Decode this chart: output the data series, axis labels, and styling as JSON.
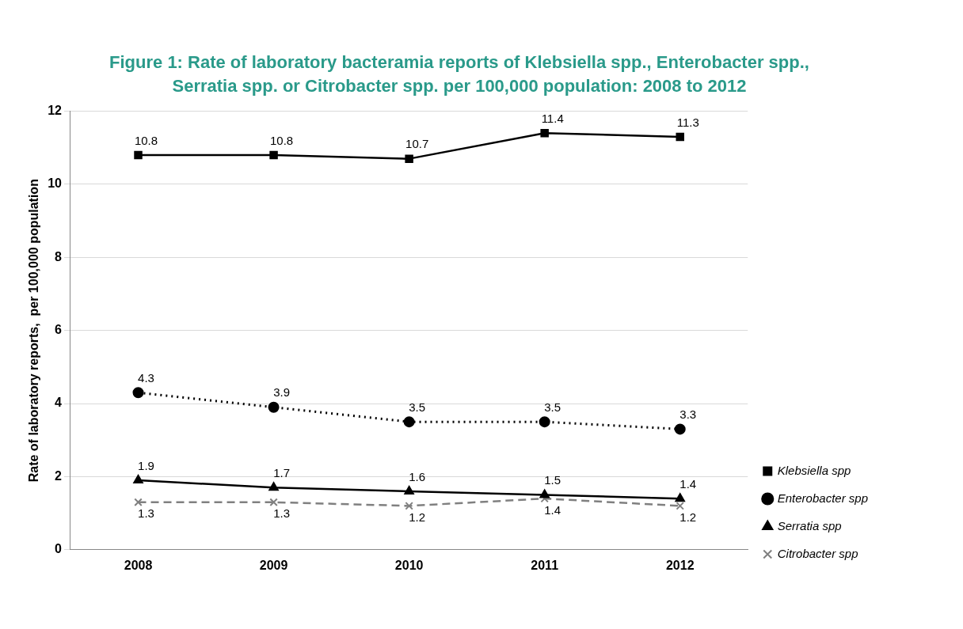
{
  "chart_data": {
    "type": "line",
    "title": "Figure 1: Rate of laboratory bacteramia reports of Klebsiella spp., Enterobacter spp., Serratia spp. or Citrobacter spp. per 100,000 population: 2008 to 2012",
    "ylabel": "Rate of laboratory reports,  per 100,000 population",
    "categories": [
      "2008",
      "2009",
      "2010",
      "2011",
      "2012"
    ],
    "series": [
      {
        "name": "Klebsiella spp",
        "color": "#000000",
        "values": [
          10.8,
          10.8,
          10.7,
          11.4,
          11.3
        ],
        "marker": "square",
        "line_style": "solid"
      },
      {
        "name": "Enterobacter spp",
        "color": "#000000",
        "values": [
          4.3,
          3.9,
          3.5,
          3.5,
          3.3
        ],
        "marker": "circle",
        "line_style": "dotted"
      },
      {
        "name": "Serratia spp",
        "color": "#000000",
        "values": [
          1.9,
          1.7,
          1.6,
          1.5,
          1.4
        ],
        "marker": "triangle",
        "line_style": "solid"
      },
      {
        "name": "Citrobacter spp",
        "color": "#808080",
        "values": [
          1.3,
          1.3,
          1.2,
          1.4,
          1.2
        ],
        "marker": "cross",
        "line_style": "dashed"
      }
    ],
    "ylim": [
      0,
      12
    ],
    "yticks": [
      0,
      2,
      4,
      6,
      8,
      10,
      12
    ],
    "grid": "y",
    "legend": "right",
    "data_labels": true
  }
}
